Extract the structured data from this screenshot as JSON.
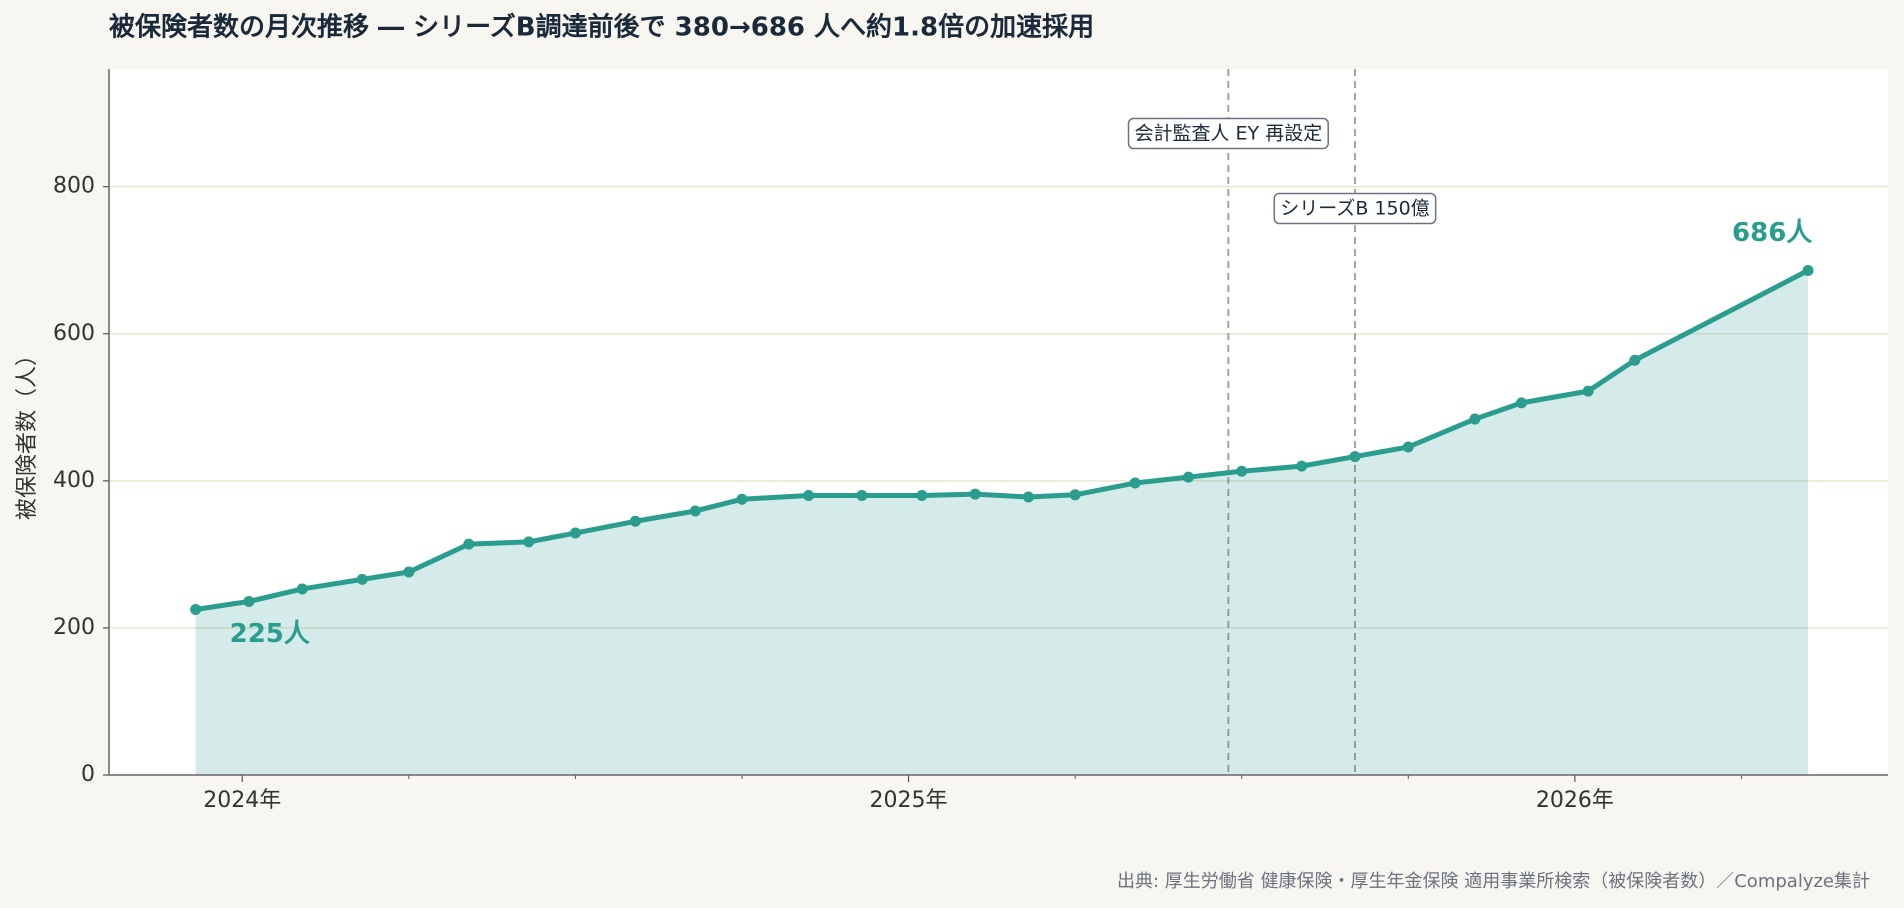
{
  "chart_data": {
    "type": "line",
    "title": "被保険者数の月次推移 ― シリーズB調達前後で 380→686 人へ約1.8倍の加速採用",
    "ylabel": "被保険者数（人）",
    "source": "出典: 厚生労働省 健康保険・厚生年金保険 適用事業所検索（被保険者数）／Compalyze集計",
    "x": [
      2023.93,
      2024.01,
      2024.09,
      2024.18,
      2024.25,
      2024.34,
      2024.43,
      2024.5,
      2024.59,
      2024.68,
      2024.75,
      2024.85,
      2024.93,
      2025.02,
      2025.1,
      2025.18,
      2025.25,
      2025.34,
      2025.42,
      2025.5,
      2025.59,
      2025.67,
      2025.75,
      2025.85,
      2025.92,
      2026.02,
      2026.09,
      2026.35
    ],
    "series": [
      {
        "name": "被保険者数",
        "color": "#2a9d8f",
        "values": [
          225,
          236,
          253,
          266,
          276,
          314,
          317,
          329,
          345,
          359,
          375,
          380,
          380,
          380,
          382,
          378,
          381,
          397,
          405,
          413,
          420,
          433,
          446,
          484,
          506,
          522,
          564,
          686
        ],
        "value_labels": [
          "225人",
          null,
          null,
          null,
          null,
          null,
          null,
          null,
          null,
          null,
          null,
          null,
          null,
          null,
          null,
          null,
          null,
          null,
          null,
          null,
          null,
          null,
          null,
          null,
          null,
          null,
          null,
          "686人"
        ]
      }
    ],
    "events": [
      {
        "x": 2025.48,
        "label": "会計監査人 EY 再設定"
      },
      {
        "x": 2025.67,
        "label": "シリーズB 150億"
      }
    ],
    "xlim": [
      2023.8,
      2026.47
    ],
    "xticks": [
      {
        "value": 2024,
        "label": "2024年"
      },
      {
        "value": 2025,
        "label": "2025年"
      },
      {
        "value": 2026,
        "label": "2026年"
      }
    ],
    "minor_xticks": [
      2024.25,
      2024.5,
      2024.75,
      2025.25,
      2025.5,
      2025.75,
      2026.25
    ],
    "ylim": [
      0,
      960
    ],
    "yticks": [
      0,
      200,
      400,
      600,
      800
    ],
    "grid": true
  }
}
